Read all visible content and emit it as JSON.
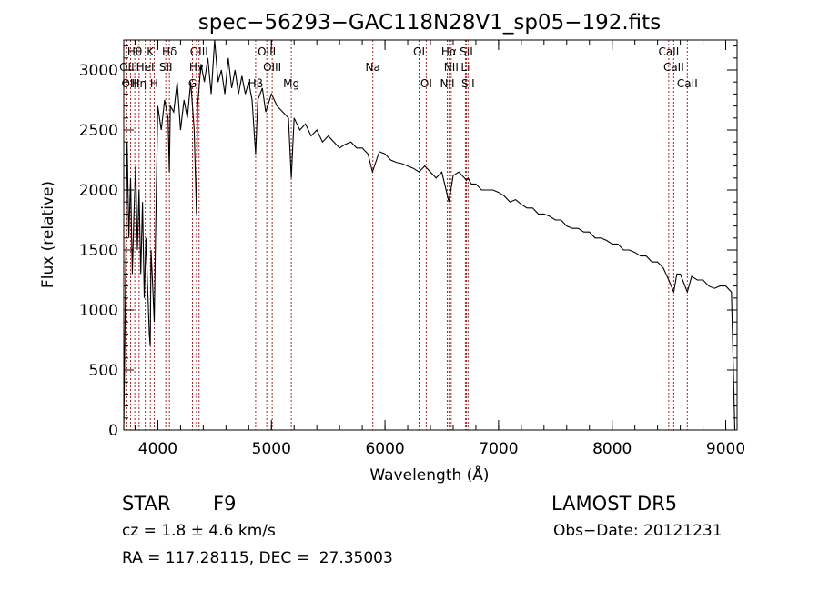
{
  "chart_data": {
    "type": "line",
    "title": "spec−56293−GAC118N28V1_sp05−192.fits",
    "xlabel": "Wavelength (Å)",
    "ylabel": "Flux (relative)",
    "xlim": [
      3700,
      9100
    ],
    "ylim": [
      0,
      3250
    ],
    "xticks": [
      4000,
      5000,
      6000,
      7000,
      8000,
      9000
    ],
    "yticks": [
      0,
      500,
      1000,
      1500,
      2000,
      2500,
      3000
    ],
    "grid": false,
    "series": [
      {
        "x": [
          3700,
          3715,
          3730,
          3745,
          3760,
          3775,
          3790,
          3805,
          3820,
          3835,
          3850,
          3865,
          3880,
          3895,
          3910,
          3925,
          3933,
          3940,
          3955,
          3968,
          3980,
          4000,
          4030,
          4060,
          4090,
          4101,
          4110,
          4140,
          4170,
          4200,
          4230,
          4260,
          4290,
          4320,
          4340,
          4350,
          4380,
          4410,
          4440,
          4470,
          4500,
          4530,
          4560,
          4590,
          4620,
          4650,
          4680,
          4710,
          4740,
          4770,
          4800,
          4830,
          4861,
          4880,
          4920,
          4950,
          5000,
          5050,
          5100,
          5150,
          5175,
          5200,
          5250,
          5300,
          5350,
          5400,
          5450,
          5500,
          5550,
          5600,
          5650,
          5700,
          5750,
          5800,
          5850,
          5890,
          5950,
          6000,
          6050,
          6100,
          6150,
          6200,
          6250,
          6300,
          6350,
          6400,
          6450,
          6500,
          6563,
          6600,
          6650,
          6700,
          6716,
          6731,
          6760,
          6800,
          6850,
          6900,
          6950,
          7000,
          7050,
          7100,
          7150,
          7200,
          7250,
          7300,
          7350,
          7400,
          7450,
          7500,
          7550,
          7600,
          7650,
          7700,
          7750,
          7800,
          7850,
          7900,
          7950,
          8000,
          8050,
          8100,
          8150,
          8200,
          8250,
          8300,
          8350,
          8400,
          8450,
          8498,
          8542,
          8570,
          8600,
          8662,
          8700,
          8750,
          8800,
          8850,
          8900,
          8950,
          9000,
          9050,
          9080
        ],
        "y": [
          0,
          1200,
          2400,
          1600,
          2100,
          1300,
          1800,
          2200,
          1500,
          2000,
          1300,
          1900,
          1100,
          1600,
          1200,
          800,
          700,
          1500,
          1200,
          900,
          1600,
          2700,
          2500,
          2750,
          2600,
          2150,
          2700,
          2650,
          2900,
          2500,
          2750,
          2600,
          2900,
          2500,
          1800,
          2700,
          3050,
          2900,
          3100,
          2800,
          3250,
          2900,
          3000,
          2800,
          3100,
          2850,
          3000,
          2800,
          2950,
          2800,
          2900,
          2750,
          2300,
          2750,
          2850,
          2650,
          2800,
          2700,
          2650,
          2600,
          2100,
          2600,
          2500,
          2550,
          2450,
          2500,
          2400,
          2450,
          2400,
          2350,
          2380,
          2400,
          2350,
          2350,
          2300,
          2150,
          2320,
          2300,
          2250,
          2230,
          2220,
          2200,
          2180,
          2150,
          2200,
          2150,
          2100,
          2150,
          1900,
          2120,
          2150,
          2100,
          2080,
          2100,
          2050,
          2050,
          2000,
          2000,
          2000,
          1980,
          1950,
          1900,
          1920,
          1880,
          1850,
          1850,
          1800,
          1800,
          1780,
          1750,
          1750,
          1700,
          1680,
          1680,
          1650,
          1650,
          1600,
          1600,
          1580,
          1550,
          1550,
          1500,
          1500,
          1480,
          1450,
          1450,
          1400,
          1400,
          1350,
          1250,
          1150,
          1300,
          1300,
          1150,
          1280,
          1250,
          1250,
          1200,
          1180,
          1200,
          1200,
          1150,
          0
        ],
        "color": "#000000"
      }
    ],
    "lines": [
      {
        "label": "Hθ",
        "x": 3797,
        "row": 1
      },
      {
        "label": "K",
        "x": 3934,
        "row": 1
      },
      {
        "label": "Hδ",
        "x": 4102,
        "row": 1
      },
      {
        "label": "OIII",
        "x": 4363,
        "row": 1
      },
      {
        "label": "OIII",
        "x": 4959,
        "row": 1
      },
      {
        "label": "OI",
        "x": 6300,
        "row": 1
      },
      {
        "label": "Hα",
        "x": 6563,
        "row": 1
      },
      {
        "label": "SII",
        "x": 6716,
        "row": 1
      },
      {
        "label": "CaII",
        "x": 8498,
        "row": 1
      },
      {
        "label": "OII",
        "x": 3727,
        "row": 2
      },
      {
        "label": "HeI",
        "x": 3889,
        "row": 2
      },
      {
        "label": "SII",
        "x": 4070,
        "row": 2
      },
      {
        "label": "Hγ",
        "x": 4340,
        "row": 2
      },
      {
        "label": "OIII",
        "x": 5007,
        "row": 2
      },
      {
        "label": "Na",
        "x": 5893,
        "row": 2
      },
      {
        "label": "NII",
        "x": 6583,
        "row": 2
      },
      {
        "label": "Li",
        "x": 6708,
        "row": 2
      },
      {
        "label": "CaII",
        "x": 8542,
        "row": 2
      },
      {
        "label": "OIII",
        "x": 3760,
        "row": 3
      },
      {
        "label": "Hη",
        "x": 3835,
        "row": 3
      },
      {
        "label": "H",
        "x": 3968,
        "row": 3
      },
      {
        "label": "G",
        "x": 4305,
        "row": 3
      },
      {
        "label": "Hβ",
        "x": 4861,
        "row": 3
      },
      {
        "label": "Mg",
        "x": 5175,
        "row": 3
      },
      {
        "label": "OI",
        "x": 6363,
        "row": 3
      },
      {
        "label": "NII",
        "x": 6548,
        "row": 3
      },
      {
        "label": "SII",
        "x": 6731,
        "row": 3
      },
      {
        "label": "CaII",
        "x": 8662,
        "row": 3
      }
    ]
  },
  "info": {
    "object_class": "STAR",
    "subclass": "F9",
    "survey": "LAMOST DR5",
    "cz": "cz = 1.8 ± 4.6 km/s",
    "obs_date": "Obs−Date: 20121231",
    "coords": "RA = 117.28115, DEC =  27.35003"
  }
}
